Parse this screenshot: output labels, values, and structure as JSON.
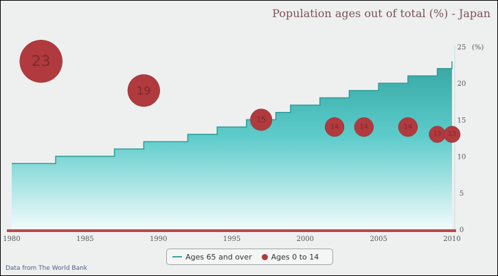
{
  "chart_data": {
    "type": "area",
    "title": "Population ages out of total (%) - Japan",
    "credits": "Data from The World Bank",
    "yunit": "(%)",
    "xlim": [
      1980,
      2010
    ],
    "ylim": [
      0,
      25
    ],
    "xticks": [
      1980,
      1985,
      1990,
      1995,
      2000,
      2005,
      2010
    ],
    "yticks": [
      0,
      5,
      10,
      15,
      20,
      25
    ],
    "legend_position": "bottom-center",
    "series": [
      {
        "name": "Ages 65 and over",
        "type": "area",
        "color": "#3aa6a4",
        "x": [
          1980,
          1981,
          1982,
          1983,
          1984,
          1985,
          1986,
          1987,
          1988,
          1989,
          1990,
          1991,
          1992,
          1993,
          1994,
          1995,
          1996,
          1997,
          1998,
          1999,
          2000,
          2001,
          2002,
          2003,
          2004,
          2005,
          2006,
          2007,
          2008,
          2009,
          2010
        ],
        "values": [
          9,
          9,
          9,
          10,
          10,
          10,
          10,
          11,
          11,
          12,
          12,
          12,
          13,
          13,
          14,
          14,
          15,
          15,
          16,
          17,
          17,
          18,
          18,
          19,
          19,
          20,
          20,
          21,
          21,
          22,
          23
        ]
      },
      {
        "name": "Ages 0 to 14",
        "type": "bubble",
        "color": "#b03a3e",
        "points": [
          {
            "x": 1982,
            "y": 23,
            "label": "23",
            "size": 23
          },
          {
            "x": 1989,
            "y": 19,
            "label": "19",
            "size": 19
          },
          {
            "x": 1997,
            "y": 15,
            "label": "15",
            "size": 15
          },
          {
            "x": 2002,
            "y": 14,
            "label": "14",
            "size": 14
          },
          {
            "x": 2004,
            "y": 14,
            "label": "14",
            "size": 14
          },
          {
            "x": 2007,
            "y": 14,
            "label": "14",
            "size": 14
          },
          {
            "x": 2009,
            "y": 13,
            "label": "13",
            "size": 13
          },
          {
            "x": 2010,
            "y": 13,
            "label": "13",
            "size": 13
          }
        ]
      }
    ]
  }
}
